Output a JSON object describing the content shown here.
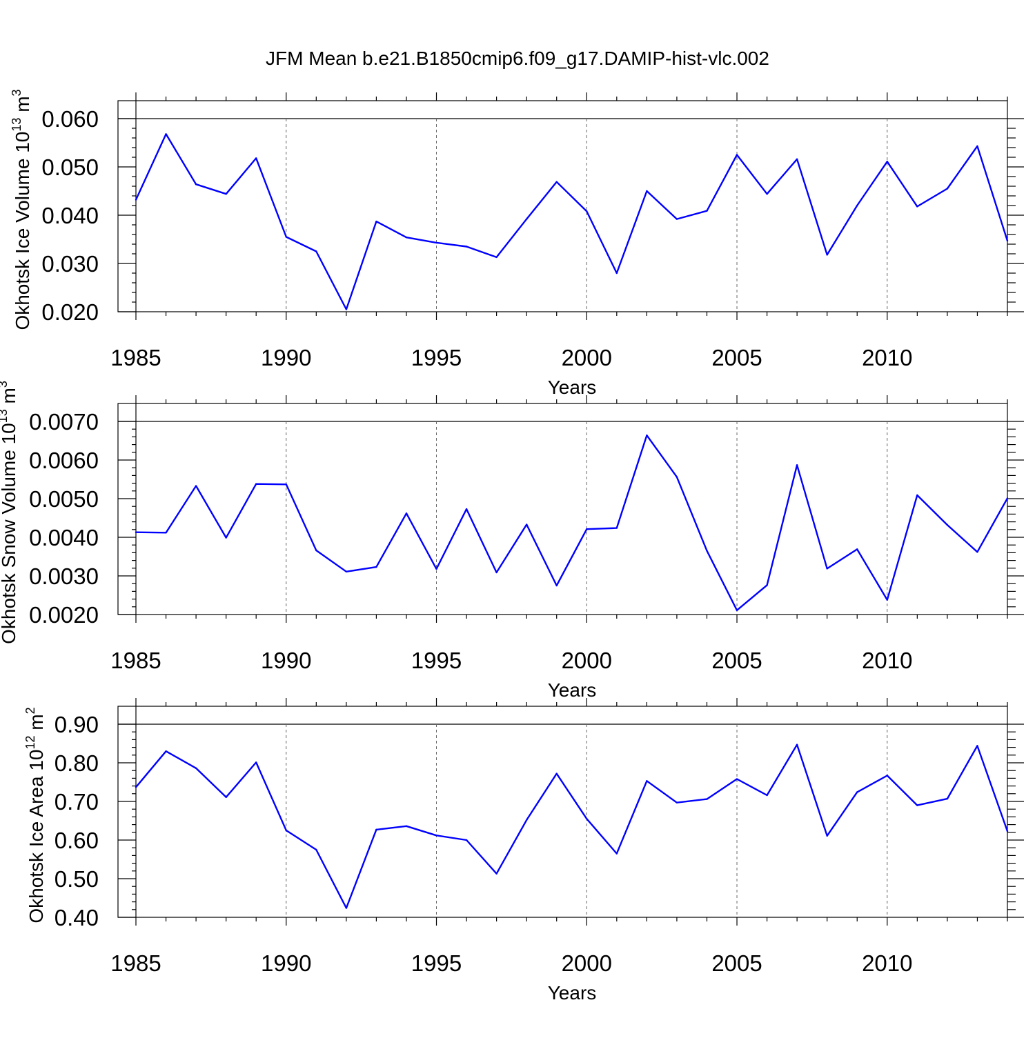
{
  "title": "JFM Mean b.e21.B1850cmip6.f09_g17.DAMIP-hist-vlc.002",
  "colors": {
    "series": "#0000ff",
    "grid": "#666666",
    "axes": "#000000"
  },
  "chart_data": [
    {
      "type": "line",
      "title": "",
      "xlabel": "Years",
      "ylabel": "Okhotsk Ice Volume 10",
      "ylabel_exp": "13",
      "ylabel_unit": " m",
      "ylabel_unit_exp": "3",
      "xlim": [
        1985,
        2014
      ],
      "ylim": [
        0.02,
        0.06
      ],
      "xticks": [
        "1985",
        "1990",
        "1995",
        "2000",
        "2005",
        "2010"
      ],
      "yticks": [
        "0.020",
        "0.030",
        "0.040",
        "0.050",
        "0.060"
      ],
      "grid": "vertical dashed at major x ticks",
      "x": [
        1985,
        1986,
        1987,
        1988,
        1989,
        1990,
        1991,
        1992,
        1993,
        1994,
        1995,
        1996,
        1997,
        1998,
        1999,
        2000,
        2001,
        2002,
        2003,
        2004,
        2005,
        2006,
        2007,
        2008,
        2009,
        2010,
        2011,
        2012,
        2013,
        2014
      ],
      "series": [
        {
          "values": [
            0.0432,
            0.0568,
            0.0464,
            0.0444,
            0.0518,
            0.0355,
            0.0325,
            0.0205,
            0.0387,
            0.0354,
            0.0343,
            0.0335,
            0.0313,
            0.0392,
            0.0469,
            0.0408,
            0.028,
            0.045,
            0.0392,
            0.0409,
            0.0525,
            0.0444,
            0.0516,
            0.0318,
            0.042,
            0.0511,
            0.0418,
            0.0455,
            0.0543,
            0.0347
          ]
        }
      ]
    },
    {
      "type": "line",
      "title": "",
      "xlabel": "Years",
      "ylabel": "Okhotsk Snow Volume 10",
      "ylabel_exp": "13",
      "ylabel_unit": " m",
      "ylabel_unit_exp": "3",
      "xlim": [
        1985,
        2014
      ],
      "ylim": [
        0.002,
        0.007
      ],
      "xticks": [
        "1985",
        "1990",
        "1995",
        "2000",
        "2005",
        "2010"
      ],
      "yticks": [
        "0.0020",
        "0.0030",
        "0.0040",
        "0.0050",
        "0.0060",
        "0.0070"
      ],
      "grid": "vertical dashed at major x ticks",
      "x": [
        1985,
        1986,
        1987,
        1988,
        1989,
        1990,
        1991,
        1992,
        1993,
        1994,
        1995,
        1996,
        1997,
        1998,
        1999,
        2000,
        2001,
        2002,
        2003,
        2004,
        2005,
        2006,
        2007,
        2008,
        2009,
        2010,
        2011,
        2012,
        2013,
        2014
      ],
      "series": [
        {
          "values": [
            0.00413,
            0.00412,
            0.00533,
            0.00399,
            0.00538,
            0.00537,
            0.00366,
            0.00311,
            0.00323,
            0.00462,
            0.00318,
            0.00473,
            0.00309,
            0.00433,
            0.00275,
            0.00421,
            0.00424,
            0.00664,
            0.00556,
            0.00365,
            0.00211,
            0.00276,
            0.00587,
            0.00319,
            0.00369,
            0.00238,
            0.00509,
            0.00432,
            0.00362,
            0.00501
          ]
        }
      ]
    },
    {
      "type": "line",
      "title": "",
      "xlabel": "Years",
      "ylabel": "Okhotsk Ice Area 10",
      "ylabel_exp": "12",
      "ylabel_unit": " m",
      "ylabel_unit_exp": "2",
      "xlim": [
        1985,
        2014
      ],
      "ylim": [
        0.4,
        0.9
      ],
      "xticks": [
        "1985",
        "1990",
        "1995",
        "2000",
        "2005",
        "2010"
      ],
      "yticks": [
        "0.40",
        "0.50",
        "0.60",
        "0.70",
        "0.80",
        "0.90"
      ],
      "grid": "vertical dashed at major x ticks",
      "x": [
        1985,
        1986,
        1987,
        1988,
        1989,
        1990,
        1991,
        1992,
        1993,
        1994,
        1995,
        1996,
        1997,
        1998,
        1999,
        2000,
        2001,
        2002,
        2003,
        2004,
        2005,
        2006,
        2007,
        2008,
        2009,
        2010,
        2011,
        2012,
        2013,
        2014
      ],
      "series": [
        {
          "values": [
            0.737,
            0.83,
            0.786,
            0.711,
            0.801,
            0.625,
            0.575,
            0.424,
            0.627,
            0.636,
            0.612,
            0.6,
            0.513,
            0.652,
            0.772,
            0.655,
            0.565,
            0.753,
            0.697,
            0.706,
            0.758,
            0.716,
            0.847,
            0.611,
            0.724,
            0.767,
            0.69,
            0.707,
            0.844,
            0.623
          ]
        }
      ]
    }
  ]
}
